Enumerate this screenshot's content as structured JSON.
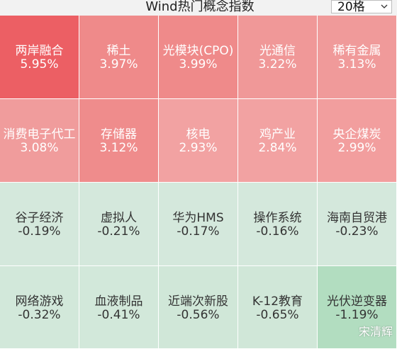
{
  "header": {
    "title": "Wind热门概念指数",
    "select_value": "20格"
  },
  "cells": [
    {
      "name": "两岸融合",
      "value": "5.95%",
      "color": "#ec5f64",
      "dark": false
    },
    {
      "name": "稀土",
      "value": "3.97%",
      "color": "#ef8a8a",
      "dark": false
    },
    {
      "name": "光模块(CPO)",
      "value": "3.99%",
      "color": "#ef8a8a",
      "dark": false
    },
    {
      "name": "光通信",
      "value": "3.22%",
      "color": "#f09898",
      "dark": false
    },
    {
      "name": "稀有金属",
      "value": "3.13%",
      "color": "#f09a9a",
      "dark": false
    },
    {
      "name": "消费电子代工",
      "value": "3.08%",
      "color": "#f09c9c",
      "dark": false
    },
    {
      "name": "存储器",
      "value": "3.12%",
      "color": "#ef8c8c",
      "dark": false
    },
    {
      "name": "核电",
      "value": "2.93%",
      "color": "#f2a2a2",
      "dark": false
    },
    {
      "name": "鸡产业",
      "value": "2.84%",
      "color": "#f2a2a2",
      "dark": false
    },
    {
      "name": "央企煤炭",
      "value": "2.99%",
      "color": "#f29e9e",
      "dark": false
    },
    {
      "name": "谷子经济",
      "value": "-0.19%",
      "color": "#d4e8dc",
      "dark": true
    },
    {
      "name": "虚拟人",
      "value": "-0.21%",
      "color": "#d4e8dc",
      "dark": true
    },
    {
      "name": "华为HMS",
      "value": "-0.17%",
      "color": "#d4e8dc",
      "dark": true
    },
    {
      "name": "操作系统",
      "value": "-0.16%",
      "color": "#d4e8dc",
      "dark": true
    },
    {
      "name": "海南自贸港",
      "value": "-0.23%",
      "color": "#d4e8dc",
      "dark": true
    },
    {
      "name": "网络游戏",
      "value": "-0.32%",
      "color": "#d2e8da",
      "dark": true
    },
    {
      "name": "血液制品",
      "value": "-0.41%",
      "color": "#d2e8da",
      "dark": true
    },
    {
      "name": "近端次新股",
      "value": "-0.56%",
      "color": "#d0e7d8",
      "dark": true
    },
    {
      "name": "K-12教育",
      "value": "-0.65%",
      "color": "#d0e7d8",
      "dark": true
    },
    {
      "name": "光伏逆变器",
      "value": "-1.19%",
      "color": "#b2ddc0",
      "dark": true
    }
  ],
  "watermark": "宋清辉"
}
